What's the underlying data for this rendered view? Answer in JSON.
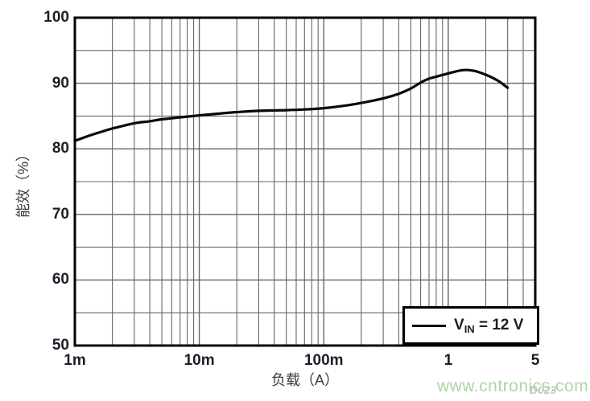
{
  "figure": {
    "x_axis_title": "负载（A）",
    "y_axis_title": "能效（%）",
    "figure_code": "D023",
    "legend": {
      "symbol": "line-sample",
      "var": "V",
      "var_sub": "IN",
      "rest": " = 12 V"
    }
  },
  "watermark": {
    "text": "www.cntronics.com",
    "color": "#a9d4a1"
  },
  "chart_data": {
    "type": "line",
    "title": "",
    "xlabel": "负载（A）",
    "ylabel": "能效（%）",
    "x_scale": "log",
    "xlim": [
      0.001,
      5
    ],
    "ylim": [
      50,
      100
    ],
    "grid": true,
    "legend_position": "bottom-right",
    "x_tick_values": [
      0.001,
      0.01,
      0.1,
      1,
      5
    ],
    "x_tick_labels": [
      "1m",
      "10m",
      "100m",
      "1",
      "5"
    ],
    "y_tick_values": [
      50,
      60,
      70,
      80,
      90,
      100
    ],
    "y_tick_labels": [
      "50",
      "60",
      "70",
      "80",
      "90",
      "100"
    ],
    "x_grid_major": [
      0.01,
      0.1,
      1
    ],
    "x_grid_minor": [
      0.002,
      0.003,
      0.004,
      0.005,
      0.006,
      0.007,
      0.008,
      0.009,
      0.02,
      0.03,
      0.04,
      0.05,
      0.06,
      0.07,
      0.08,
      0.09,
      0.2,
      0.3,
      0.4,
      0.5,
      0.6,
      0.7,
      0.8,
      0.9,
      2,
      3,
      4
    ],
    "y_grid_major": [
      60,
      70,
      80,
      90
    ],
    "y_grid_minor": [
      55,
      65,
      75,
      85,
      95
    ],
    "grid_color": "#666666",
    "border_color": "#000000",
    "series": [
      {
        "name": "VIN = 12 V",
        "color": "#0a0a0a",
        "x": [
          0.001,
          0.0013,
          0.0017,
          0.002,
          0.003,
          0.004,
          0.005,
          0.007,
          0.01,
          0.015,
          0.02,
          0.03,
          0.05,
          0.07,
          0.1,
          0.15,
          0.2,
          0.3,
          0.4,
          0.5,
          0.6,
          0.7,
          0.8,
          1.0,
          1.3,
          1.6,
          2.0,
          2.5,
          3.0
        ],
        "y": [
          81.2,
          82.0,
          82.7,
          83.1,
          83.9,
          84.2,
          84.5,
          84.8,
          85.1,
          85.4,
          85.6,
          85.8,
          85.9,
          86.0,
          86.2,
          86.6,
          87.0,
          87.7,
          88.4,
          89.2,
          90.1,
          90.7,
          91.0,
          91.5,
          92.0,
          91.9,
          91.3,
          90.4,
          89.3
        ]
      }
    ]
  }
}
